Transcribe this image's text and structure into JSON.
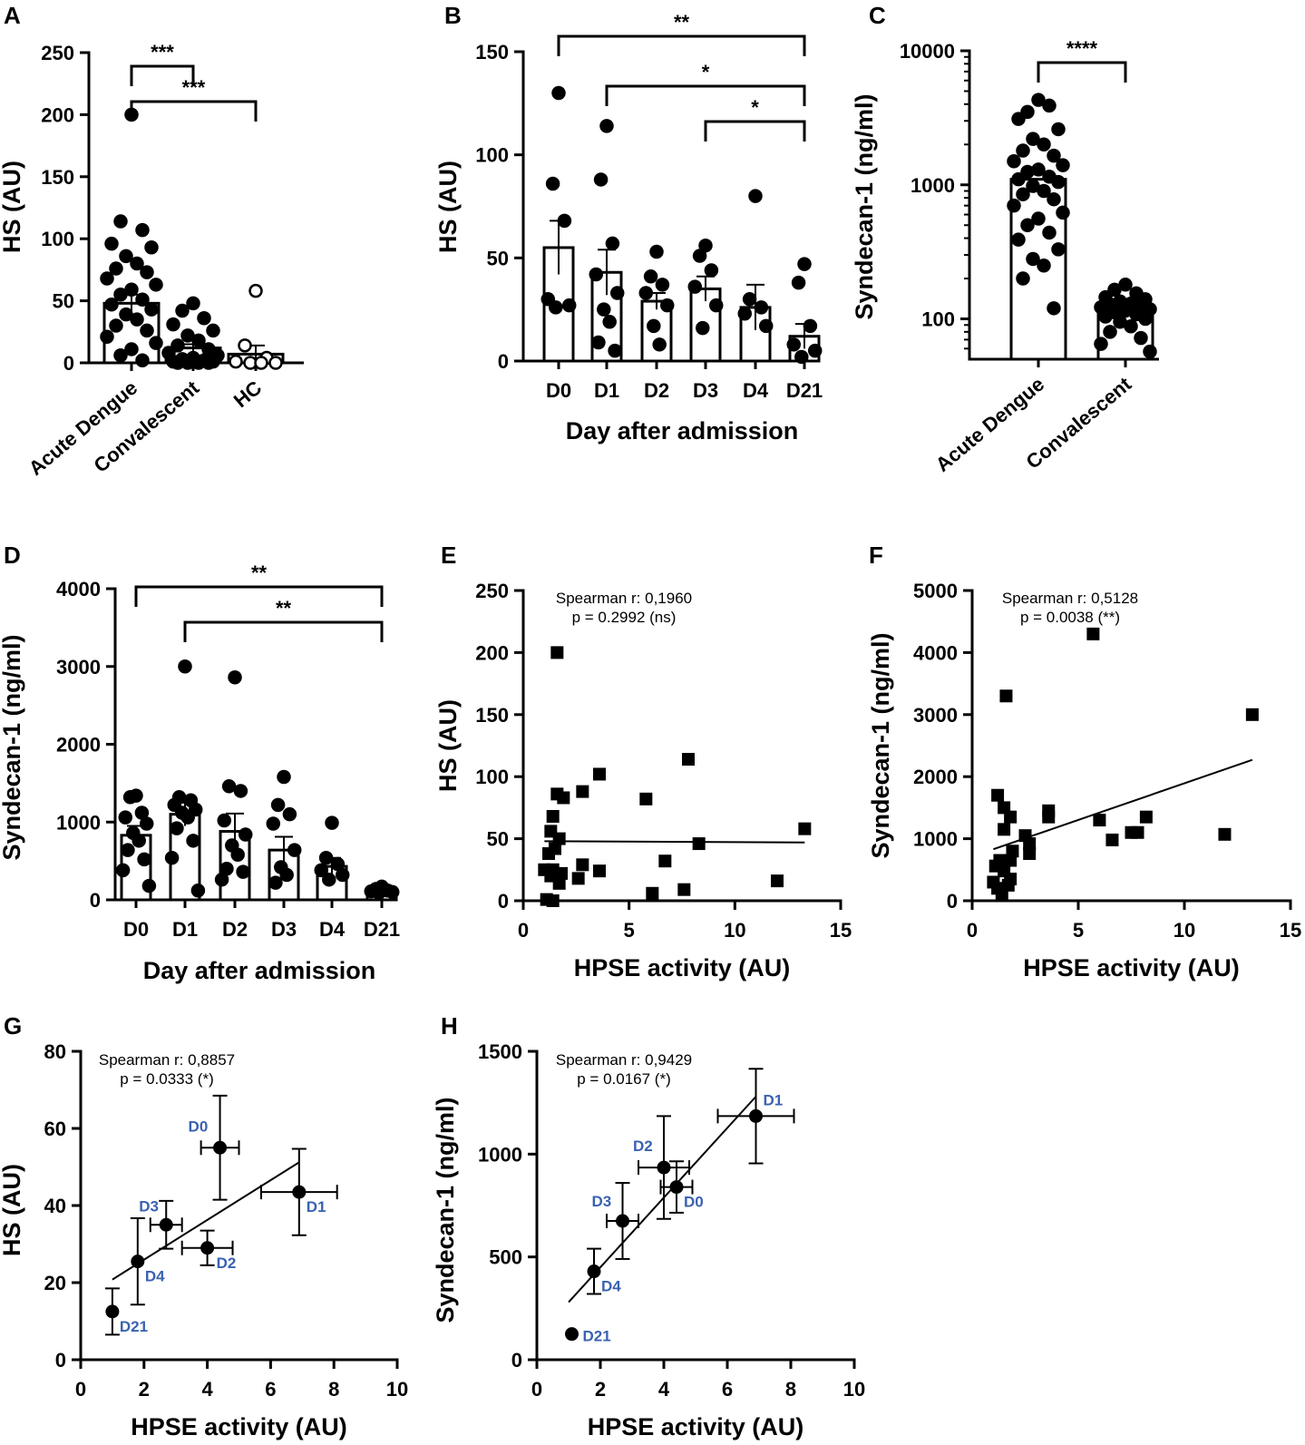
{
  "colors": {
    "ink": "#000000",
    "point_label": "#3a62b0",
    "background": "#ffffff"
  },
  "chart_data": [
    {
      "panel": "A",
      "type": "bar",
      "ylabel": "HS (AU)",
      "xlabel": "",
      "ylim": [
        0,
        250
      ],
      "yticks": [
        "0",
        "50",
        "100",
        "150",
        "200",
        "250"
      ],
      "categories": [
        "Acute Dengue",
        "Convalescent",
        "HC"
      ],
      "means": [
        48,
        12,
        7
      ],
      "sem": [
        7,
        3,
        7
      ],
      "points": [
        [
          200,
          114,
          107,
          96,
          93,
          86,
          80,
          76,
          73,
          68,
          63,
          59,
          55,
          51,
          47,
          43,
          39,
          35,
          30,
          26,
          21,
          16,
          11,
          6,
          2
        ],
        [
          48,
          42,
          36,
          31,
          26,
          22,
          18,
          14,
          11,
          8,
          6,
          4,
          3,
          2,
          1,
          1,
          0,
          0,
          0,
          0
        ],
        [
          58,
          14,
          4,
          1,
          0,
          0,
          0
        ]
      ],
      "open_points_category": "HC",
      "comparisons": [
        {
          "from": "Acute Dengue",
          "to": "Convalescent",
          "label": "***"
        },
        {
          "from": "Acute Dengue",
          "to": "HC",
          "label": "***"
        }
      ]
    },
    {
      "panel": "B",
      "type": "bar",
      "ylabel": "HS (AU)",
      "xlabel": "Day after admission",
      "ylim": [
        0,
        150
      ],
      "yticks": [
        "0",
        "50",
        "100",
        "150"
      ],
      "categories": [
        "D0",
        "D1",
        "D2",
        "D3",
        "D4",
        "D21"
      ],
      "means": [
        55,
        43,
        29,
        35,
        26,
        12
      ],
      "sem": [
        13,
        11,
        4,
        6,
        11,
        6
      ],
      "points": [
        [
          130,
          86,
          68,
          30,
          27,
          26
        ],
        [
          114,
          88,
          57,
          42,
          33,
          25,
          19,
          9,
          5
        ],
        [
          53,
          41,
          37,
          33,
          27,
          17,
          8
        ],
        [
          56,
          51,
          44,
          36,
          27,
          16
        ],
        [
          80,
          30,
          26,
          23,
          17
        ],
        [
          47,
          38,
          17,
          8,
          5,
          2
        ]
      ],
      "comparisons": [
        {
          "from": "D0",
          "to": "D21",
          "label": "**"
        },
        {
          "from": "D1",
          "to": "D21",
          "label": "*"
        },
        {
          "from": "D3",
          "to": "D21",
          "label": "*"
        }
      ]
    },
    {
      "panel": "C",
      "type": "bar",
      "yscale": "log",
      "ylabel": "Syndecan-1 (ng/ml)",
      "xlabel": "",
      "ylim": [
        50,
        10000
      ],
      "yticks": [
        "100",
        "1000",
        "10000"
      ],
      "categories": [
        "Acute Dengue",
        "Convalescent"
      ],
      "means": [
        1100,
        125
      ],
      "points": [
        [
          4300,
          3500,
          3900,
          3100,
          2600,
          2200,
          2000,
          1800,
          1650,
          1500,
          1400,
          1300,
          1250,
          1150,
          1100,
          1050,
          980,
          900,
          850,
          780,
          700,
          620,
          560,
          500,
          440,
          390,
          330,
          280,
          250,
          200,
          120
        ],
        [
          180,
          165,
          155,
          145,
          140,
          135,
          130,
          128,
          125,
          122,
          118,
          115,
          112,
          108,
          104,
          100,
          95,
          88,
          80,
          72,
          65,
          57
        ]
      ],
      "comparisons": [
        {
          "from": "Acute Dengue",
          "to": "Convalescent",
          "label": "****"
        }
      ]
    },
    {
      "panel": "D",
      "type": "bar",
      "ylabel": "Syndecan-1 (ng/ml)",
      "xlabel": "Day after admission",
      "ylim": [
        0,
        4000
      ],
      "yticks": [
        "0",
        "1000",
        "2000",
        "3000",
        "4000"
      ],
      "categories": [
        "D0",
        "D1",
        "D2",
        "D3",
        "D4",
        "D21"
      ],
      "means": [
        830,
        1100,
        880,
        640,
        430,
        130
      ],
      "sem": [
        120,
        150,
        230,
        170,
        110,
        20
      ],
      "points": [
        [
          1340,
          1320,
          1120,
          1060,
          980,
          860,
          760,
          640,
          520,
          380,
          180
        ],
        [
          3000,
          1320,
          1280,
          1220,
          1160,
          1120,
          1060,
          920,
          760,
          540,
          120
        ],
        [
          2860,
          1460,
          1400,
          1020,
          840,
          700,
          580,
          400,
          360,
          260
        ],
        [
          1580,
          1220,
          1100,
          980,
          640,
          420,
          320,
          220
        ],
        [
          990,
          540,
          460,
          380,
          320,
          260
        ],
        [
          170,
          140,
          120,
          110,
          100,
          90
        ]
      ],
      "comparisons": [
        {
          "from": "D0",
          "to": "D21",
          "label": "**"
        },
        {
          "from": "D1",
          "to": "D21",
          "label": "**"
        }
      ]
    },
    {
      "panel": "E",
      "type": "scatter",
      "marker": "square",
      "ylabel": "HS (AU)",
      "xlabel": "HPSE activity (AU)",
      "xlim": [
        0,
        15
      ],
      "ylim": [
        0,
        250
      ],
      "xticks": [
        "0",
        "5",
        "10",
        "15"
      ],
      "yticks": [
        "0",
        "50",
        "100",
        "150",
        "200",
        "250"
      ],
      "annotation": [
        "Spearman r: 0,1960",
        "p = 0.2992 (ns)"
      ],
      "points": [
        [
          1.6,
          200
        ],
        [
          7.8,
          114
        ],
        [
          3.6,
          102
        ],
        [
          2.8,
          88
        ],
        [
          1.6,
          86
        ],
        [
          1.9,
          83
        ],
        [
          5.8,
          82
        ],
        [
          1.4,
          68
        ],
        [
          13.3,
          58
        ],
        [
          1.3,
          56
        ],
        [
          1.7,
          50
        ],
        [
          8.3,
          46
        ],
        [
          1.5,
          42
        ],
        [
          1.2,
          38
        ],
        [
          6.7,
          32
        ],
        [
          2.8,
          29
        ],
        [
          1.4,
          25
        ],
        [
          1.0,
          25
        ],
        [
          3.6,
          24
        ],
        [
          1.8,
          22
        ],
        [
          1.3,
          20
        ],
        [
          2.6,
          18
        ],
        [
          1.7,
          14
        ],
        [
          12.0,
          16
        ],
        [
          7.6,
          9
        ],
        [
          6.1,
          6
        ],
        [
          1.1,
          1
        ],
        [
          1.4,
          0
        ]
      ],
      "fit": {
        "x": [
          1.0,
          13.3
        ],
        "y": [
          48,
          47
        ]
      }
    },
    {
      "panel": "F",
      "type": "scatter",
      "marker": "square",
      "ylabel": "Syndecan-1 (ng/ml)",
      "xlabel": "HPSE activity (AU)",
      "xlim": [
        0,
        15
      ],
      "ylim": [
        0,
        5000
      ],
      "xticks": [
        "0",
        "5",
        "10",
        "15"
      ],
      "yticks": [
        "0",
        "1000",
        "2000",
        "3000",
        "4000",
        "5000"
      ],
      "annotation": [
        "Spearman r: 0,5128",
        "p = 0.0038 (**)"
      ],
      "points": [
        [
          5.7,
          4300
        ],
        [
          1.6,
          3300
        ],
        [
          13.2,
          3000
        ],
        [
          1.2,
          1700
        ],
        [
          1.5,
          1500
        ],
        [
          1.8,
          1350
        ],
        [
          3.6,
          1450
        ],
        [
          3.6,
          1350
        ],
        [
          6.0,
          1300
        ],
        [
          8.2,
          1350
        ],
        [
          7.5,
          1100
        ],
        [
          7.8,
          1100
        ],
        [
          6.6,
          980
        ],
        [
          11.9,
          1070
        ],
        [
          2.5,
          1050
        ],
        [
          2.7,
          920
        ],
        [
          1.5,
          1150
        ],
        [
          2.7,
          760
        ],
        [
          1.9,
          800
        ],
        [
          1.8,
          650
        ],
        [
          1.3,
          650
        ],
        [
          1.1,
          560
        ],
        [
          1.5,
          480
        ],
        [
          1.8,
          350
        ],
        [
          1.0,
          300
        ],
        [
          1.2,
          200
        ],
        [
          1.7,
          250
        ],
        [
          1.4,
          100
        ]
      ],
      "fit": {
        "x": [
          1.0,
          13.2
        ],
        "y": [
          830,
          2270
        ]
      }
    },
    {
      "panel": "G",
      "type": "scatter",
      "marker": "circle",
      "ylabel": "HS (AU)",
      "xlabel": "HPSE activity (AU)",
      "xlim": [
        0,
        10
      ],
      "ylim": [
        0,
        80
      ],
      "xticks": [
        "0",
        "2",
        "4",
        "6",
        "8",
        "10"
      ],
      "yticks": [
        "0",
        "20",
        "40",
        "60",
        "80"
      ],
      "annotation": [
        "Spearman r: 0,8857",
        "p = 0.0333 (*)"
      ],
      "points": [
        {
          "label": "D0",
          "x": 4.4,
          "y": 55,
          "xerr": 0.6,
          "yerr": 13.5
        },
        {
          "label": "D1",
          "x": 6.9,
          "y": 43.5,
          "xerr": 1.2,
          "yerr": 11.2
        },
        {
          "label": "D2",
          "x": 4.0,
          "y": 29,
          "xerr": 0.8,
          "yerr": 4.5
        },
        {
          "label": "D3",
          "x": 2.7,
          "y": 35,
          "xerr": 0.5,
          "yerr": 6.2
        },
        {
          "label": "D4",
          "x": 1.8,
          "y": 25.5,
          "xerr": 0,
          "yerr": 11.2
        },
        {
          "label": "D21",
          "x": 1.0,
          "y": 12.5,
          "xerr": 0,
          "yerr": 6
        }
      ],
      "fit": {
        "x": [
          1.0,
          6.9
        ],
        "y": [
          20.8,
          51.2
        ]
      }
    },
    {
      "panel": "H",
      "type": "scatter",
      "marker": "circle",
      "ylabel": "Syndecan-1 (ng/ml)",
      "xlabel": "HPSE activity (AU)",
      "xlim": [
        0,
        10
      ],
      "ylim": [
        0,
        1500
      ],
      "xticks": [
        "0",
        "2",
        "4",
        "6",
        "8",
        "10"
      ],
      "yticks": [
        "0",
        "500",
        "1000",
        "1500"
      ],
      "annotation": [
        "Spearman r: 0,9429",
        "p = 0.0167 (*)"
      ],
      "points": [
        {
          "label": "D1",
          "x": 6.9,
          "y": 1185,
          "xerr": 1.2,
          "yerr": 230
        },
        {
          "label": "D2",
          "x": 4.0,
          "y": 935,
          "xerr": 0.8,
          "yerr": 250
        },
        {
          "label": "D0",
          "x": 4.4,
          "y": 840,
          "xerr": 0.5,
          "yerr": 125
        },
        {
          "label": "D3",
          "x": 2.7,
          "y": 675,
          "xerr": 0.5,
          "yerr": 185
        },
        {
          "label": "D4",
          "x": 1.8,
          "y": 430,
          "xerr": 0,
          "yerr": 110
        },
        {
          "label": "D21",
          "x": 1.1,
          "y": 125,
          "xerr": 0,
          "yerr": 0
        }
      ],
      "fit": {
        "x": [
          1.0,
          6.9
        ],
        "y": [
          280,
          1280
        ]
      }
    }
  ]
}
